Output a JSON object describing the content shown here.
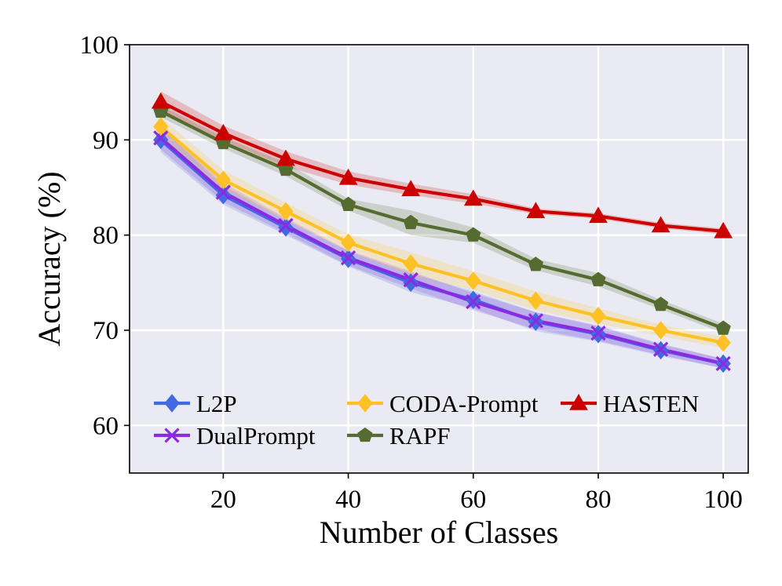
{
  "chart_data": {
    "type": "line",
    "xlabel": "Number of Classes",
    "ylabel": "Accuracy (%)",
    "xlim": [
      5,
      104
    ],
    "ylim": [
      55,
      100
    ],
    "xticks": [
      20,
      40,
      60,
      80,
      100
    ],
    "yticks": [
      60,
      70,
      80,
      90,
      100
    ],
    "grid": true,
    "legend_placement": "lower-left",
    "x": [
      10,
      20,
      30,
      40,
      50,
      60,
      70,
      80,
      90,
      100
    ],
    "series": [
      {
        "name": "L2P",
        "color": "#4169e1",
        "marker": "diamond",
        "values": [
          90.0,
          84.2,
          80.8,
          77.5,
          75.0,
          73.2,
          70.9,
          69.6,
          67.9,
          66.5
        ],
        "band": [
          1.3,
          1.0,
          0.8,
          0.8,
          1.0,
          0.9,
          1.0,
          0.8,
          0.6,
          0.5
        ]
      },
      {
        "name": "DualPrompt",
        "color": "#8a2be2",
        "marker": "x",
        "values": [
          90.2,
          84.5,
          81.0,
          77.6,
          75.3,
          73.0,
          71.0,
          69.7,
          68.0,
          66.5
        ],
        "band": [
          1.2,
          1.0,
          0.8,
          0.8,
          0.9,
          0.9,
          0.9,
          0.8,
          0.6,
          0.5
        ]
      },
      {
        "name": "CODA-Prompt",
        "color": "#ffc125",
        "marker": "diamond",
        "values": [
          91.4,
          85.8,
          82.5,
          79.2,
          77.0,
          75.2,
          73.1,
          71.5,
          70.0,
          68.7
        ],
        "band": [
          1.0,
          1.0,
          0.9,
          0.9,
          1.2,
          1.0,
          1.0,
          0.8,
          0.6,
          0.6
        ]
      },
      {
        "name": "RAPF",
        "color": "#556b2f",
        "marker": "pentagon",
        "values": [
          93.0,
          89.7,
          86.9,
          83.2,
          81.3,
          80.0,
          76.9,
          75.3,
          72.7,
          70.2
        ],
        "band": [
          0.6,
          0.6,
          0.7,
          0.6,
          1.3,
          0.8,
          0.6,
          0.7,
          0.5,
          0.5
        ]
      },
      {
        "name": "HASTEN",
        "color": "#cc0000",
        "marker": "triangle",
        "values": [
          94.0,
          90.7,
          88.0,
          86.0,
          84.8,
          83.8,
          82.5,
          82.0,
          81.0,
          80.4
        ],
        "band": [
          1.1,
          0.8,
          0.8,
          0.7,
          0.6,
          0.5,
          0.3,
          0.3,
          0.3,
          0.3
        ]
      }
    ],
    "legend_order": [
      "L2P",
      "CODA-Prompt",
      "HASTEN",
      "DualPrompt",
      "RAPF"
    ],
    "styles": {
      "plot_background": "#eaeaf2",
      "grid_color": "#ffffff",
      "frame_color": "#000000"
    }
  }
}
